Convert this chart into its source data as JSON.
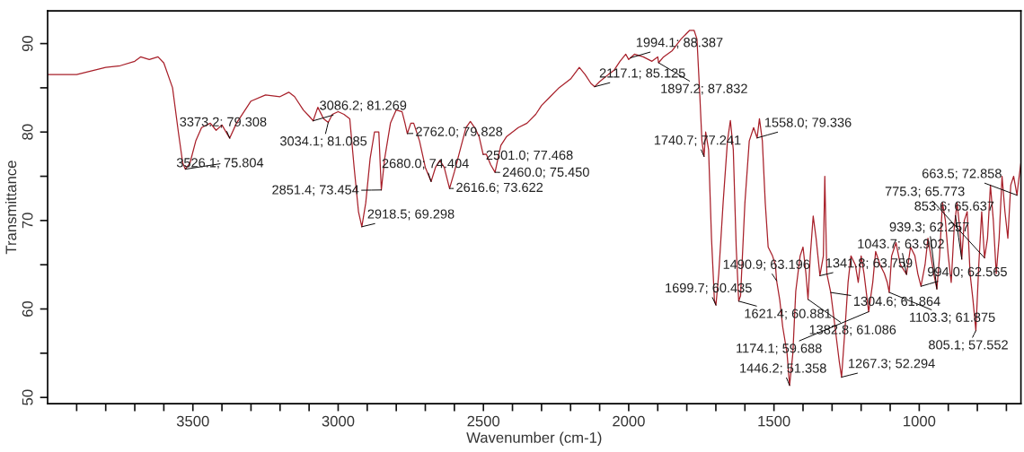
{
  "chart_data": {
    "type": "line",
    "xlabel": "Wavenumber (cm-1)",
    "ylabel": "Transmittance",
    "xlim": [
      4000,
      650
    ],
    "ylim": [
      49.3,
      93.7
    ],
    "xticks": [
      {
        "value": 3900,
        "label": null
      },
      {
        "value": 3800,
        "label": null
      },
      {
        "value": 3700,
        "label": null
      },
      {
        "value": 3600,
        "label": null
      },
      3500,
      {
        "value": 3400,
        "label": null
      },
      {
        "value": 3300,
        "label": null
      },
      {
        "value": 3200,
        "label": null
      },
      {
        "value": 3100,
        "label": null
      },
      3000,
      {
        "value": 2900,
        "label": null
      },
      {
        "value": 2800,
        "label": null
      },
      {
        "value": 2700,
        "label": null
      },
      {
        "value": 2600,
        "label": null
      },
      2500,
      {
        "value": 2400,
        "label": null
      },
      {
        "value": 2300,
        "label": null
      },
      {
        "value": 2200,
        "label": null
      },
      {
        "value": 2100,
        "label": null
      },
      2000,
      {
        "value": 1900,
        "label": null
      },
      {
        "value": 1800,
        "label": null
      },
      {
        "value": 1700,
        "label": null
      },
      {
        "value": 1600,
        "label": null
      },
      1500,
      {
        "value": 1400,
        "label": null
      },
      {
        "value": 1300,
        "label": null
      },
      {
        "value": 1200,
        "label": null
      },
      {
        "value": 1100,
        "label": null
      },
      1000,
      {
        "value": 900,
        "label": null
      },
      {
        "value": 800,
        "label": null
      },
      {
        "value": 700,
        "label": null
      }
    ],
    "yticks": [
      50,
      {
        "value": 55,
        "label": null
      },
      60,
      {
        "value": 65,
        "label": null
      },
      70,
      {
        "value": 75,
        "label": null
      },
      80,
      {
        "value": 85,
        "label": null
      },
      90
    ],
    "grid": false,
    "marker": "none",
    "line_style": "solid",
    "series": [
      {
        "color": "#a8202a",
        "x": [
          4000,
          3900,
          3800,
          3750,
          3700,
          3680,
          3650,
          3620,
          3600,
          3570,
          3550,
          3535,
          3526.1,
          3510,
          3490,
          3470,
          3440,
          3420,
          3400,
          3373.2,
          3350,
          3300,
          3250,
          3200,
          3170,
          3150,
          3120,
          3100,
          3086.2,
          3070,
          3050,
          3034.1,
          3020,
          3000,
          2980,
          2960,
          2945,
          2930,
          2918.5,
          2905,
          2890,
          2875,
          2860,
          2851.4,
          2840,
          2820,
          2800,
          2780,
          2770,
          2762.0,
          2750,
          2740,
          2720,
          2700,
          2680.0,
          2665,
          2650,
          2635,
          2616.6,
          2600,
          2580,
          2560,
          2545,
          2530,
          2515,
          2501.0,
          2490,
          2475,
          2460.0,
          2450,
          2440,
          2420,
          2380,
          2350,
          2320,
          2300,
          2270,
          2240,
          2200,
          2170,
          2150,
          2130,
          2117.1,
          2100,
          2070,
          2050,
          2030,
          2010,
          2000,
          1994.1,
          1980,
          1950,
          1920,
          1900,
          1897.2,
          1880,
          1850,
          1820,
          1790,
          1775,
          1765,
          1755,
          1748,
          1740.7,
          1735,
          1725,
          1715,
          1705,
          1699.7,
          1690,
          1675,
          1660,
          1650,
          1640,
          1630,
          1621.4,
          1615,
          1600,
          1585,
          1570,
          1558.0,
          1550,
          1540,
          1530,
          1520,
          1505,
          1495,
          1490.9,
          1480,
          1470,
          1455,
          1446.2,
          1435,
          1425,
          1410,
          1400,
          1390,
          1382.8,
          1375,
          1365,
          1355,
          1341.8,
          1330,
          1325,
          1318,
          1304.6,
          1290,
          1275,
          1267.3,
          1255,
          1245,
          1235,
          1220,
          1210,
          1200,
          1190,
          1174.1,
          1160,
          1150,
          1135,
          1120,
          1110,
          1103.3,
          1095,
          1080,
          1065,
          1055,
          1043.7,
          1030,
          1015,
          1005,
          994.0,
          980,
          970,
          960,
          950,
          939.3,
          930,
          920,
          910,
          900,
          890,
          880,
          870,
          860,
          853.6,
          845,
          835,
          825,
          815,
          805.1,
          795,
          785,
          775.3,
          765,
          755,
          745,
          735,
          725,
          715,
          705,
          695,
          685,
          675,
          663.5,
          658,
          650
        ],
        "values": [
          86.5,
          86.5,
          87.3,
          87.5,
          88.0,
          88.5,
          88.2,
          88.5,
          87.8,
          85,
          80,
          76.5,
          75.804,
          76.5,
          79,
          80.5,
          81,
          80.2,
          80.8,
          79.308,
          81,
          83.5,
          84.2,
          84.0,
          84.5,
          84.0,
          82.5,
          81.8,
          81.269,
          82.8,
          81.5,
          81.085,
          82,
          82.3,
          82,
          81.5,
          76,
          71,
          69.298,
          72,
          77,
          80,
          80,
          73.454,
          77,
          81,
          82.5,
          82.3,
          81,
          79.828,
          81,
          81.0,
          79,
          76,
          74.404,
          76,
          76.8,
          76,
          73.622,
          75.5,
          78,
          80.5,
          81.2,
          80.5,
          79.5,
          77.468,
          77.5,
          76.3,
          75.45,
          77,
          78.5,
          79.5,
          80.5,
          81,
          82,
          83,
          84,
          85,
          86,
          87.3,
          86.5,
          85.5,
          85.125,
          85.7,
          86.5,
          87,
          88,
          88.8,
          88.2,
          88.387,
          88.8,
          88.5,
          88.0,
          88.5,
          87.832,
          88.5,
          89.2,
          90.5,
          91.5,
          91.5,
          90.5,
          84,
          79,
          77.241,
          80,
          78,
          68,
          61,
          60.435,
          64,
          72,
          79,
          81.3,
          78,
          67,
          60.881,
          61.5,
          72,
          79,
          80.5,
          79.336,
          81.5,
          79,
          72,
          67,
          66,
          65,
          63.196,
          61,
          58,
          55,
          51.358,
          55,
          62,
          66,
          67,
          64,
          61.086,
          66,
          70.5,
          68,
          63.759,
          66,
          75,
          64,
          61.864,
          58,
          54,
          52.294,
          58,
          63,
          66,
          65,
          63,
          66,
          64,
          59.688,
          63,
          66.5,
          65,
          64,
          63,
          61.875,
          66,
          67.5,
          65,
          64.5,
          63.902,
          67,
          66,
          64,
          62.565,
          65,
          68,
          66,
          64,
          62.257,
          66,
          72,
          70,
          66,
          63,
          69,
          72,
          69,
          65.637,
          70,
          71,
          64,
          61,
          57.552,
          65,
          71,
          65.773,
          68,
          74,
          70,
          64,
          68,
          75,
          71,
          68,
          74,
          75,
          72.858,
          74.5,
          76.5
        ]
      }
    ],
    "annotations": [
      {
        "text": "3373.2; 79.308",
        "x": 3373.2,
        "y": 79.308
      },
      {
        "text": "3526.1; 75.804",
        "x": 3526.1,
        "y": 75.804
      },
      {
        "text": "3086.2; 81.269",
        "x": 3086.2,
        "y": 81.269
      },
      {
        "text": "3034.1; 81.085",
        "x": 3034.1,
        "y": 81.085
      },
      {
        "text": "2851.4; 73.454",
        "x": 2851.4,
        "y": 73.454
      },
      {
        "text": "2918.5; 69.298",
        "x": 2918.5,
        "y": 69.298
      },
      {
        "text": "2762.0; 79.828",
        "x": 2762.0,
        "y": 79.828
      },
      {
        "text": "2680.0; 74.404",
        "x": 2680.0,
        "y": 74.404
      },
      {
        "text": "2616.6; 73.622",
        "x": 2616.6,
        "y": 73.622
      },
      {
        "text": "2501.0; 77.468",
        "x": 2501.0,
        "y": 77.468
      },
      {
        "text": "2460.0; 75.450",
        "x": 2460.0,
        "y": 75.45
      },
      {
        "text": "2117.1; 85.125",
        "x": 2117.1,
        "y": 85.125
      },
      {
        "text": "1994.1; 88.387",
        "x": 1994.1,
        "y": 88.387
      },
      {
        "text": "1897.2; 87.832",
        "x": 1897.2,
        "y": 87.832
      },
      {
        "text": "1740.7; 77.241",
        "x": 1740.7,
        "y": 77.241
      },
      {
        "text": "1558.0; 79.336",
        "x": 1558.0,
        "y": 79.336
      },
      {
        "text": "1699.7; 60.435",
        "x": 1699.7,
        "y": 60.435
      },
      {
        "text": "1621.4; 60.881",
        "x": 1621.4,
        "y": 60.881
      },
      {
        "text": "1490.9; 63.196",
        "x": 1490.9,
        "y": 63.196
      },
      {
        "text": "1341.8; 63.759",
        "x": 1341.8,
        "y": 63.759
      },
      {
        "text": "1304.6; 61.864",
        "x": 1304.6,
        "y": 61.864
      },
      {
        "text": "1382.8; 61.086",
        "x": 1382.8,
        "y": 61.086
      },
      {
        "text": "1174.1; 59.688",
        "x": 1174.1,
        "y": 59.688
      },
      {
        "text": "1446.2; 51.358",
        "x": 1446.2,
        "y": 51.358
      },
      {
        "text": "1267.3; 52.294",
        "x": 1267.3,
        "y": 52.294
      },
      {
        "text": "1103.3; 61.875",
        "x": 1103.3,
        "y": 61.875
      },
      {
        "text": "1043.7; 63.902",
        "x": 1043.7,
        "y": 63.902
      },
      {
        "text": "994.0; 62.565",
        "x": 994.0,
        "y": 62.565
      },
      {
        "text": "939.3; 62.257",
        "x": 939.3,
        "y": 62.257
      },
      {
        "text": "853.6; 65.637",
        "x": 853.6,
        "y": 65.637
      },
      {
        "text": "775.3; 65.773",
        "x": 775.3,
        "y": 65.773
      },
      {
        "text": "663.5; 72.858",
        "x": 663.5,
        "y": 72.858
      },
      {
        "text": "805.1; 57.552",
        "x": 805.1,
        "y": 57.552
      }
    ]
  }
}
